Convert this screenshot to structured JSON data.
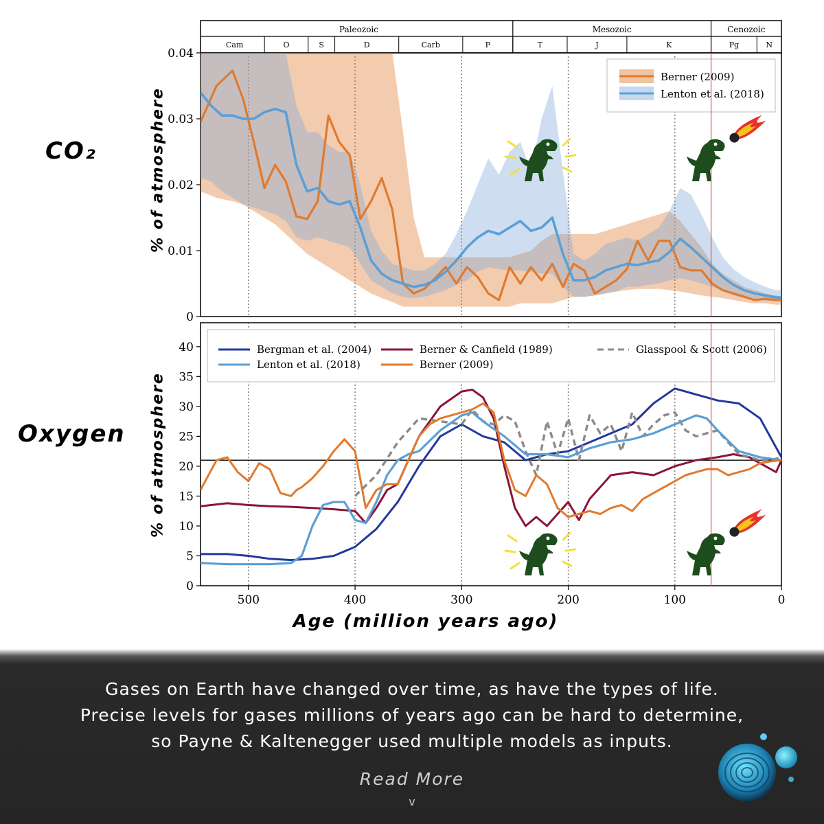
{
  "labels": {
    "co2_label": "CO₂",
    "oxygen_label": "Oxygen",
    "y_label": "% of atmosphere",
    "x_label": "Age (million years ago)"
  },
  "footer": {
    "caption_line1": "Gases on Earth have changed over time, as have the types of life.",
    "caption_line2": "Precise levels for gases millions of years ago can be hard to determine,",
    "caption_line3": "so Payne & Kaltenegger used multiple models as inputs.",
    "read_more": "Read More",
    "chevron": "v"
  },
  "colors": {
    "berner2009": "#e07a2e",
    "lenton": "#5b9fd6",
    "bergman": "#23399b",
    "berner_canfield": "#8c1536",
    "glasspool": "#8a8a8a",
    "dino": "#1d4d1d",
    "extinction_line": "#e05050"
  },
  "chart_data": [
    {
      "type": "line",
      "id": "co2",
      "title": "CO₂",
      "ylabel": "% of atmosphere",
      "xlim": [
        545,
        0
      ],
      "ylim": [
        0,
        0.04
      ],
      "yticks": [
        "0",
        "0.01",
        "0.02",
        "0.03",
        "0.04"
      ],
      "ytick_values": [
        0,
        0.01,
        0.02,
        0.03,
        0.04
      ],
      "eras": [
        {
          "name": "Paleozoic",
          "start": 541,
          "end": 252
        },
        {
          "name": "Mesozoic",
          "start": 252,
          "end": 66
        },
        {
          "name": "Cenozoic",
          "start": 66,
          "end": 0
        }
      ],
      "periods": [
        {
          "name": "Cam",
          "start": 541,
          "end": 485
        },
        {
          "name": "O",
          "start": 485,
          "end": 444
        },
        {
          "name": "S",
          "start": 444,
          "end": 419
        },
        {
          "name": "D",
          "start": 419,
          "end": 359
        },
        {
          "name": "Carb",
          "start": 359,
          "end": 299
        },
        {
          "name": "P",
          "start": 299,
          "end": 252
        },
        {
          "name": "T",
          "start": 252,
          "end": 201
        },
        {
          "name": "J",
          "start": 201,
          "end": 145
        },
        {
          "name": "K",
          "start": 145,
          "end": 66
        },
        {
          "name": "Pg",
          "start": 66,
          "end": 23
        },
        {
          "name": "N",
          "start": 23,
          "end": 0
        }
      ],
      "gridlines_x": [
        500,
        400,
        300,
        200,
        100
      ],
      "extinction_marker": 66,
      "legend": [
        "Berner (2009)",
        "Lenton et al. (2018)"
      ],
      "legend_position": "top-right",
      "series": [
        {
          "name": "Berner (2009)",
          "x": [
            545,
            530,
            515,
            505,
            495,
            485,
            475,
            465,
            455,
            445,
            435,
            425,
            415,
            405,
            395,
            385,
            375,
            365,
            355,
            345,
            335,
            325,
            315,
            305,
            295,
            285,
            275,
            265,
            255,
            245,
            235,
            225,
            215,
            205,
            195,
            185,
            175,
            165,
            155,
            145,
            135,
            125,
            115,
            105,
            95,
            85,
            75,
            65,
            55,
            45,
            35,
            25,
            15,
            5,
            0
          ],
          "values": [
            0.0295,
            0.035,
            0.0373,
            0.033,
            0.0265,
            0.0195,
            0.023,
            0.0205,
            0.0152,
            0.0148,
            0.0175,
            0.0305,
            0.0265,
            0.0245,
            0.0148,
            0.0175,
            0.021,
            0.0162,
            0.005,
            0.0035,
            0.0042,
            0.0058,
            0.0075,
            0.005,
            0.0075,
            0.006,
            0.0035,
            0.0025,
            0.0075,
            0.005,
            0.0075,
            0.0055,
            0.008,
            0.0045,
            0.008,
            0.007,
            0.0035,
            0.0045,
            0.0055,
            0.0072,
            0.0115,
            0.0085,
            0.0115,
            0.0115,
            0.0075,
            0.007,
            0.007,
            0.005,
            0.004,
            0.0035,
            0.003,
            0.0025,
            0.0027,
            0.0025,
            0.0025
          ],
          "band_lower": [
            0.019,
            0.018,
            0.0175,
            0.017,
            0.016,
            0.015,
            0.014,
            0.0125,
            0.011,
            0.0095,
            0.0085,
            0.0075,
            0.0065,
            0.0055,
            0.0045,
            0.0035,
            0.0028,
            0.0022,
            0.0015,
            0.0015,
            0.0015,
            0.0015,
            0.0015,
            0.0015,
            0.0015,
            0.0015,
            0.0015,
            0.0015,
            0.0015,
            0.002,
            0.002,
            0.002,
            0.002,
            0.0025,
            0.003,
            0.003,
            0.0032,
            0.0035,
            0.0038,
            0.004,
            0.0042,
            0.0042,
            0.0042,
            0.004,
            0.0038,
            0.0035,
            0.0032,
            0.003,
            0.0028,
            0.0025,
            0.0022,
            0.002,
            0.002,
            0.0018,
            0.0018
          ],
          "band_upper": [
            0.04,
            0.04,
            0.04,
            0.04,
            0.04,
            0.04,
            0.04,
            0.04,
            0.04,
            0.04,
            0.04,
            0.04,
            0.04,
            0.04,
            0.04,
            0.04,
            0.04,
            0.04,
            0.028,
            0.015,
            0.009,
            0.009,
            0.009,
            0.009,
            0.009,
            0.009,
            0.009,
            0.009,
            0.009,
            0.0095,
            0.01,
            0.0115,
            0.0125,
            0.0125,
            0.0125,
            0.0125,
            0.0125,
            0.013,
            0.0135,
            0.014,
            0.0145,
            0.015,
            0.0155,
            0.016,
            0.0145,
            0.0125,
            0.0105,
            0.008,
            0.0065,
            0.0055,
            0.0045,
            0.004,
            0.0035,
            0.0032,
            0.003
          ]
        },
        {
          "name": "Lenton et al. (2018)",
          "x": [
            545,
            535,
            525,
            515,
            505,
            495,
            485,
            475,
            465,
            455,
            445,
            435,
            425,
            415,
            405,
            395,
            385,
            375,
            365,
            355,
            345,
            335,
            325,
            315,
            305,
            295,
            285,
            275,
            265,
            255,
            245,
            235,
            225,
            215,
            205,
            195,
            185,
            175,
            165,
            155,
            145,
            135,
            125,
            115,
            105,
            95,
            85,
            75,
            65,
            55,
            45,
            35,
            25,
            15,
            5,
            0
          ],
          "values": [
            0.034,
            0.032,
            0.0305,
            0.0305,
            0.03,
            0.03,
            0.031,
            0.0315,
            0.031,
            0.023,
            0.019,
            0.0195,
            0.0175,
            0.017,
            0.0175,
            0.0135,
            0.0085,
            0.0065,
            0.0055,
            0.005,
            0.0045,
            0.0048,
            0.0055,
            0.0068,
            0.0085,
            0.0105,
            0.012,
            0.013,
            0.0125,
            0.0135,
            0.0145,
            0.013,
            0.0135,
            0.015,
            0.0095,
            0.0055,
            0.0055,
            0.006,
            0.007,
            0.0075,
            0.008,
            0.0078,
            0.0082,
            0.0085,
            0.0098,
            0.0118,
            0.0105,
            0.009,
            0.0075,
            0.006,
            0.0048,
            0.004,
            0.0035,
            0.0032,
            0.0029,
            0.0029
          ],
          "band_lower": [
            0.021,
            0.0205,
            0.019,
            0.018,
            0.017,
            0.0165,
            0.016,
            0.0155,
            0.0145,
            0.012,
            0.0115,
            0.012,
            0.0115,
            0.011,
            0.0105,
            0.008,
            0.0055,
            0.0045,
            0.0035,
            0.003,
            0.0028,
            0.003,
            0.0035,
            0.004,
            0.0048,
            0.0055,
            0.0068,
            0.0075,
            0.0072,
            0.007,
            0.007,
            0.0068,
            0.0065,
            0.0065,
            0.0045,
            0.003,
            0.003,
            0.0032,
            0.0035,
            0.0038,
            0.0045,
            0.0045,
            0.0048,
            0.005,
            0.0055,
            0.0058,
            0.0055,
            0.005,
            0.0045,
            0.0038,
            0.0032,
            0.0028,
            0.0025,
            0.0024,
            0.0023,
            0.0023
          ],
          "band_upper": [
            0.04,
            0.04,
            0.04,
            0.04,
            0.04,
            0.04,
            0.04,
            0.04,
            0.04,
            0.032,
            0.028,
            0.028,
            0.026,
            0.025,
            0.025,
            0.02,
            0.013,
            0.01,
            0.008,
            0.0075,
            0.007,
            0.007,
            0.008,
            0.0095,
            0.0125,
            0.016,
            0.02,
            0.024,
            0.0215,
            0.025,
            0.0265,
            0.022,
            0.03,
            0.035,
            0.022,
            0.0095,
            0.0085,
            0.0095,
            0.011,
            0.0115,
            0.012,
            0.0115,
            0.0125,
            0.0135,
            0.016,
            0.0195,
            0.0185,
            0.0155,
            0.012,
            0.009,
            0.0072,
            0.006,
            0.0052,
            0.0045,
            0.004,
            0.004
          ]
        }
      ]
    },
    {
      "type": "line",
      "id": "oxygen",
      "title": "Oxygen",
      "xlabel": "Age (million years ago)",
      "ylabel": "% of atmosphere",
      "xlim": [
        545,
        0
      ],
      "ylim": [
        0,
        44
      ],
      "xticks": [
        "500",
        "400",
        "300",
        "200",
        "100",
        "0"
      ],
      "xtick_values": [
        500,
        400,
        300,
        200,
        100,
        0
      ],
      "yticks": [
        "0",
        "5",
        "10",
        "15",
        "20",
        "25",
        "30",
        "35",
        "40"
      ],
      "ytick_values": [
        0,
        5,
        10,
        15,
        20,
        25,
        30,
        35,
        40
      ],
      "reference_line": 21,
      "gridlines_x": [
        500,
        400,
        300,
        200,
        100
      ],
      "extinction_marker": 66,
      "legend": [
        "Bergman et al. (2004)",
        "Berner & Canfield (1989)",
        "Glasspool & Scott (2006)",
        "Lenton et al. (2018)",
        "Berner (2009)"
      ],
      "legend_position": "top",
      "series": [
        {
          "name": "Bergman et al. (2004)",
          "x": [
            545,
            520,
            500,
            480,
            460,
            440,
            420,
            400,
            380,
            360,
            340,
            320,
            300,
            280,
            260,
            240,
            220,
            200,
            180,
            160,
            140,
            120,
            100,
            80,
            60,
            40,
            20,
            0
          ],
          "values": [
            5.3,
            5.3,
            5.0,
            4.5,
            4.3,
            4.5,
            5.0,
            6.5,
            9.5,
            14.0,
            20.0,
            25.0,
            27.0,
            25.0,
            24.0,
            21.0,
            22.0,
            22.5,
            24.0,
            25.5,
            27.0,
            30.5,
            33.0,
            32.0,
            31.0,
            30.5,
            28.0,
            21.5
          ]
        },
        {
          "name": "Berner & Canfield (1989)",
          "x": [
            545,
            520,
            500,
            480,
            460,
            440,
            420,
            400,
            390,
            380,
            370,
            360,
            340,
            320,
            300,
            290,
            280,
            270,
            260,
            250,
            240,
            230,
            220,
            210,
            200,
            190,
            180,
            160,
            140,
            120,
            100,
            80,
            60,
            45,
            30,
            15,
            5,
            0
          ],
          "values": [
            13.3,
            13.8,
            13.5,
            13.3,
            13.2,
            13.0,
            12.8,
            12.5,
            10.5,
            13.0,
            16.0,
            17.0,
            25.0,
            30.0,
            32.5,
            32.8,
            31.5,
            28.0,
            20.0,
            13.0,
            10.0,
            11.5,
            10.0,
            12.0,
            14.0,
            11.0,
            14.5,
            18.5,
            19.0,
            18.5,
            20.0,
            21.0,
            21.5,
            22.0,
            21.5,
            20.0,
            19.0,
            21.0
          ]
        },
        {
          "name": "Glasspool & Scott (2006)",
          "x": [
            400,
            380,
            360,
            340,
            320,
            300,
            290,
            280,
            270,
            260,
            250,
            240,
            230,
            220,
            210,
            200,
            190,
            180,
            170,
            160,
            150,
            140,
            130,
            120,
            110,
            100,
            90,
            80,
            70,
            60,
            50,
            40,
            30,
            20,
            10,
            0
          ],
          "values": [
            15.0,
            18.5,
            24.0,
            28.0,
            27.5,
            27.0,
            29.5,
            27.5,
            27.0,
            28.5,
            27.5,
            22.5,
            18.5,
            27.5,
            22.0,
            28.0,
            21.0,
            28.5,
            25.5,
            27.0,
            22.5,
            29.0,
            25.0,
            27.0,
            28.5,
            29.0,
            26.0,
            25.0,
            25.5,
            26.0,
            24.0,
            22.0,
            21.5,
            21.0,
            21.0,
            21.5
          ]
        },
        {
          "name": "Lenton et al. (2018)",
          "x": [
            545,
            520,
            500,
            480,
            460,
            450,
            440,
            430,
            420,
            410,
            400,
            390,
            380,
            370,
            360,
            350,
            340,
            320,
            300,
            290,
            280,
            260,
            240,
            220,
            200,
            180,
            160,
            140,
            120,
            100,
            80,
            70,
            60,
            40,
            20,
            0
          ],
          "values": [
            3.8,
            3.6,
            3.6,
            3.6,
            3.8,
            5.0,
            10.0,
            13.5,
            14.0,
            14.0,
            11.0,
            10.5,
            14.0,
            18.5,
            21.0,
            22.0,
            22.5,
            26.0,
            28.5,
            29.0,
            27.5,
            25.0,
            22.0,
            22.0,
            21.5,
            23.0,
            24.0,
            24.5,
            25.5,
            27.0,
            28.5,
            28.0,
            26.0,
            22.5,
            21.5,
            21.0
          ]
        },
        {
          "name": "Berner (2009)",
          "x": [
            545,
            530,
            520,
            510,
            500,
            490,
            480,
            470,
            460,
            455,
            450,
            440,
            430,
            420,
            410,
            400,
            390,
            380,
            370,
            360,
            350,
            340,
            330,
            320,
            310,
            300,
            290,
            280,
            270,
            260,
            250,
            240,
            230,
            220,
            210,
            200,
            190,
            180,
            170,
            160,
            150,
            140,
            130,
            120,
            110,
            100,
            90,
            80,
            70,
            60,
            50,
            40,
            30,
            20,
            10,
            0
          ],
          "values": [
            16.0,
            21.0,
            21.5,
            19.0,
            17.5,
            20.5,
            19.5,
            15.5,
            15.0,
            16.0,
            16.5,
            18.0,
            20.0,
            22.5,
            24.5,
            22.5,
            13.0,
            16.0,
            17.0,
            17.0,
            21.0,
            25.0,
            27.0,
            28.0,
            28.5,
            29.0,
            29.5,
            30.5,
            29.0,
            21.0,
            16.0,
            15.0,
            18.5,
            17.0,
            13.0,
            11.5,
            12.0,
            12.5,
            12.0,
            13.0,
            13.5,
            12.5,
            14.5,
            15.5,
            16.5,
            17.5,
            18.5,
            19.0,
            19.5,
            19.5,
            18.5,
            19.0,
            19.5,
            20.5,
            20.8,
            21.0
          ]
        }
      ]
    }
  ]
}
